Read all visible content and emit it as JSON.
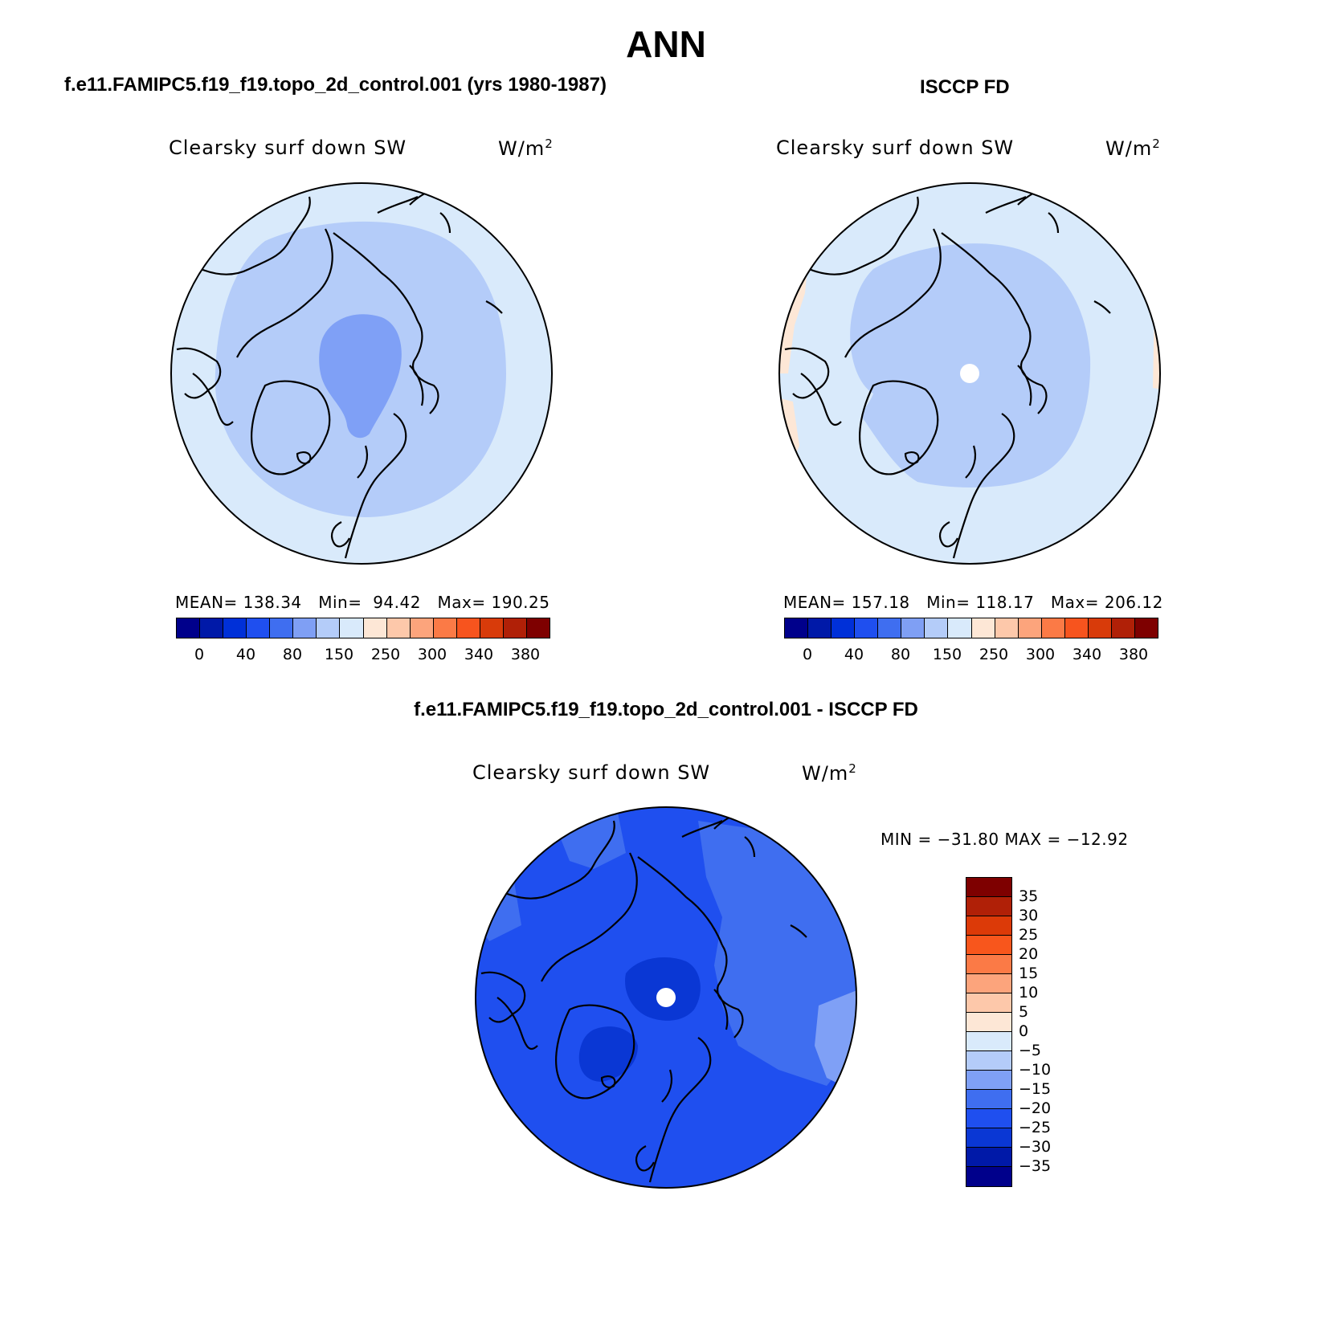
{
  "figure": {
    "season": "ANN",
    "field_name": "Clearsky surf down SW",
    "units": "W/m",
    "units_exponent": "2"
  },
  "panels": {
    "model": {
      "title": "f.e11.FAMIPC5.f19_f19.topo_2d_control.001 (yrs 1980-1987)",
      "stats": {
        "mean_label": "MEAN=",
        "mean": "138.34",
        "min_label": "Min=",
        "min": "94.42",
        "max_label": "Max=",
        "max": "190.25"
      }
    },
    "obs": {
      "title": "ISCCP FD",
      "stats": {
        "mean_label": "MEAN=",
        "mean": "157.18",
        "min_label": "Min=",
        "min": "118.17",
        "max_label": "Max=",
        "max": "206.12"
      }
    },
    "diff": {
      "title": "f.e11.FAMIPC5.f19_f19.topo_2d_control.001 - ISCCP FD",
      "minmax": "MIN = −31.80 MAX = −12.92"
    }
  },
  "abs_colorbar": {
    "colors": [
      "#00008b",
      "#0019a8",
      "#0030d8",
      "#1f4fef",
      "#3f6ef0",
      "#7f9ff4",
      "#b4ccf9",
      "#d9eafb",
      "#fde7d6",
      "#fdc8aa",
      "#fca47c",
      "#fb7a46",
      "#f7541e",
      "#d83b0a",
      "#b02007",
      "#7e0000"
    ],
    "tick_labels": [
      "0",
      "40",
      "80",
      "150",
      "250",
      "300",
      "340",
      "380"
    ]
  },
  "diff_colorbar": {
    "colors_top_to_bottom": [
      "#7e0000",
      "#b02007",
      "#dc3a08",
      "#f8561c",
      "#fb7a46",
      "#fca47c",
      "#fdc8aa",
      "#fde7d6",
      "#d9eafb",
      "#b4ccf9",
      "#7fa0f6",
      "#3f6ef0",
      "#1f4fef",
      "#0a37d4",
      "#0019a8",
      "#00008b"
    ],
    "tick_labels": [
      "35",
      "30",
      "25",
      "20",
      "15",
      "10",
      "5",
      "0",
      "−5",
      "−10",
      "−15",
      "−20",
      "−25",
      "−30",
      "−35"
    ]
  },
  "map_fields": {
    "model": {
      "outer": "#d9eafb",
      "middle": "#b4ccf9",
      "inner": "#7fa0f6",
      "pole_hole": false
    },
    "obs": {
      "outer": "#d9eafb",
      "middle": "#b4ccf9",
      "edge_warm": "#fde7d6",
      "pole_hole": true
    },
    "diff": {
      "outer": "#1f4fef",
      "east": "#3f6ef0",
      "pacific": "#7fa0f6",
      "inner": "#0a37d4",
      "pole_hole": true
    }
  }
}
